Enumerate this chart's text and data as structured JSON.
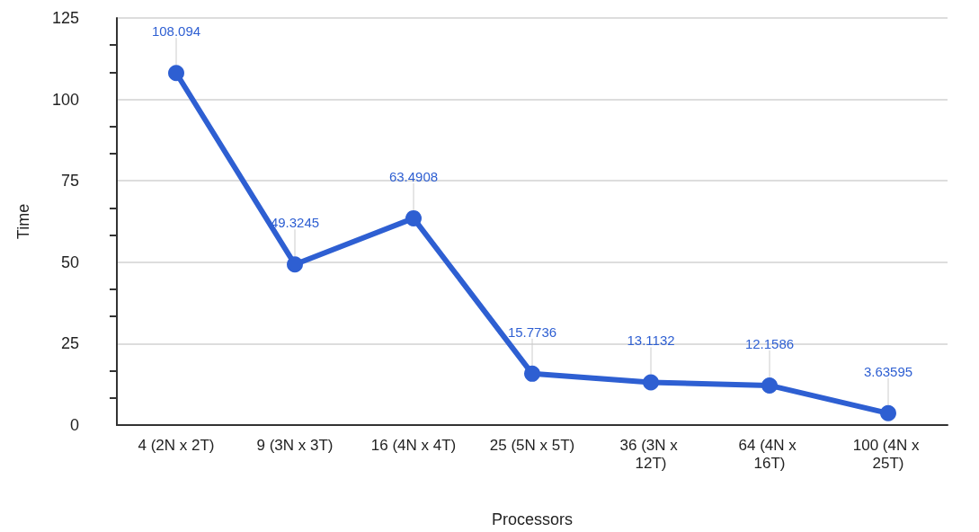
{
  "chart_data": {
    "type": "line",
    "xlabel": "Processors",
    "ylabel": "Time",
    "categories": [
      "4 (2N x 2T)",
      "9 (3N x 3T)",
      "16 (4N x 4T)",
      "25 (5N x 5T)",
      "36 (3N x 12T)",
      "64 (4N x 16T)",
      "100 (4N x 25T)"
    ],
    "series": [
      {
        "color": "#2e5fd2",
        "values": [
          108.094,
          49.3245,
          63.4908,
          15.7736,
          13.1132,
          12.1586,
          3.63595
        ]
      }
    ],
    "ylim": [
      0,
      125
    ],
    "yticks": [
      0,
      25,
      50,
      75,
      100,
      125
    ],
    "grid": "y",
    "marker": "circle",
    "line_style": "solid",
    "data_labels": true
  }
}
